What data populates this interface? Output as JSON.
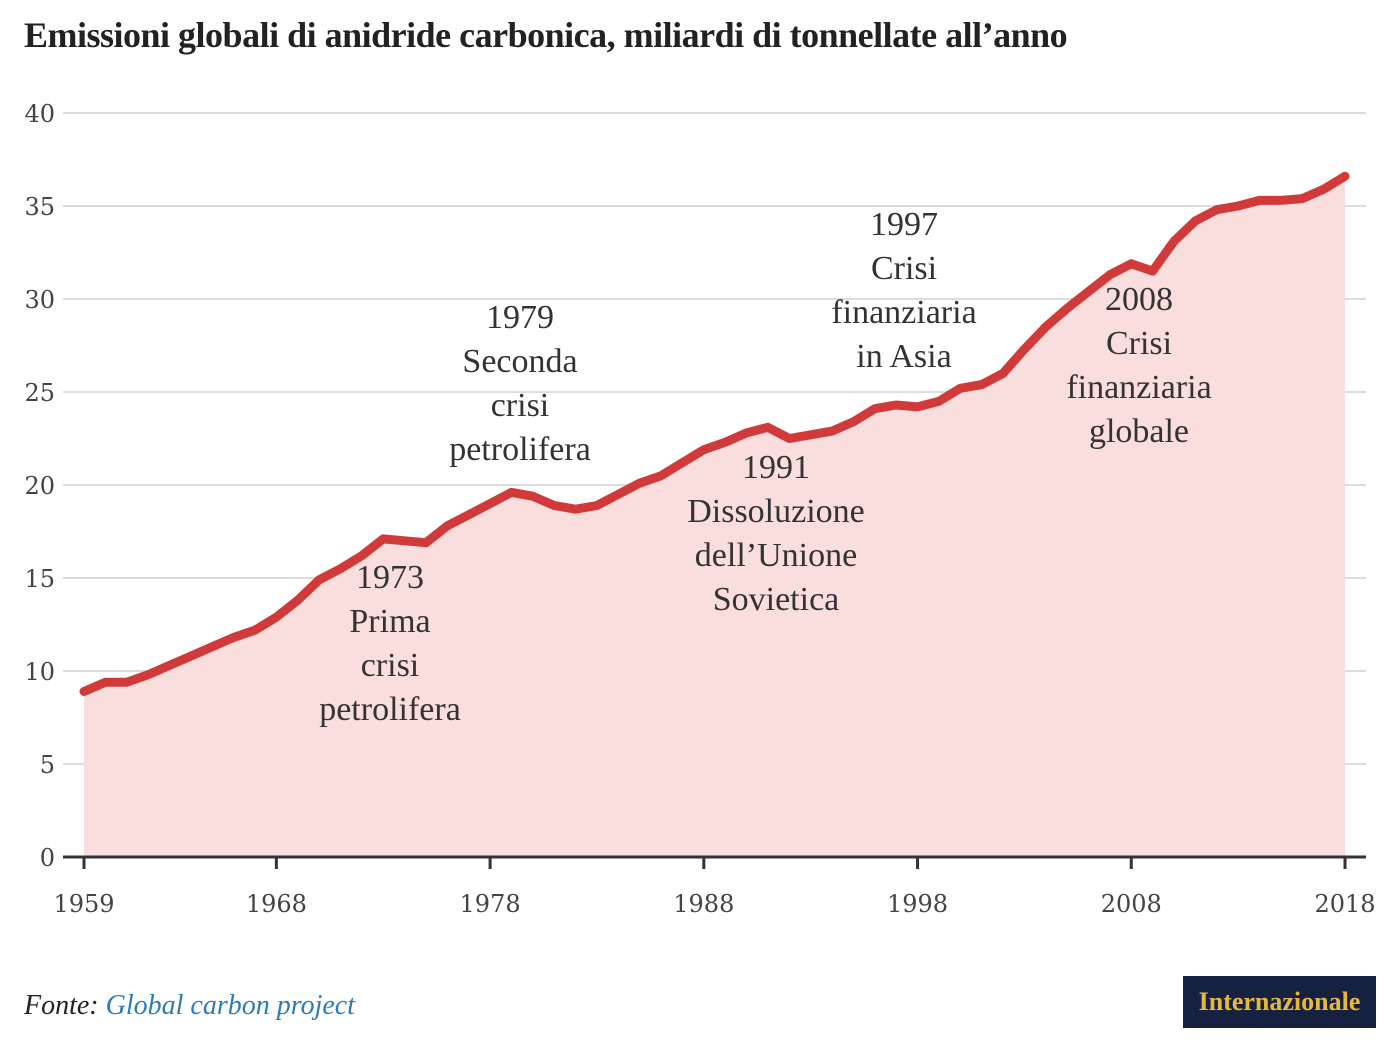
{
  "title": "Emissioni globali di anidride carbonica, miliardi di tonnellate all’anno",
  "source": {
    "label": "Fonte:",
    "name": "Global carbon project"
  },
  "logo": "Internazionale",
  "colors": {
    "line": "#d13a3a",
    "area": "#fadddd",
    "grid": "#dddddd",
    "axis": "#333333",
    "logo_bg": "#15213f",
    "logo_text": "#e7b93a",
    "link": "#2b7bb9"
  },
  "chart_data": {
    "type": "area",
    "title": "Emissioni globali di anidride carbonica, miliardi di tonnellate all’anno",
    "ylim": [
      0,
      40
    ],
    "xlim": [
      1959,
      2018
    ],
    "yticks": [
      0,
      5,
      10,
      15,
      20,
      25,
      30,
      35,
      40
    ],
    "xticks": [
      1959,
      1968,
      1978,
      1988,
      1998,
      2008,
      2018
    ],
    "grid": "horizontal",
    "series": [
      {
        "x": [
          1959,
          1960,
          1961,
          1962,
          1963,
          1964,
          1965,
          1966,
          1967,
          1968,
          1969,
          1970,
          1971,
          1972,
          1973,
          1974,
          1975,
          1976,
          1977,
          1978,
          1979,
          1980,
          1981,
          1982,
          1983,
          1984,
          1985,
          1986,
          1987,
          1988,
          1989,
          1990,
          1991,
          1992,
          1993,
          1994,
          1995,
          1996,
          1997,
          1998,
          1999,
          2000,
          2001,
          2002,
          2003,
          2004,
          2005,
          2006,
          2007,
          2008,
          2009,
          2010,
          2011,
          2012,
          2013,
          2014,
          2015,
          2016,
          2017,
          2018
        ],
        "y": [
          8.9,
          9.4,
          9.4,
          9.8,
          10.3,
          10.8,
          11.3,
          11.8,
          12.2,
          12.9,
          13.8,
          14.9,
          15.5,
          16.2,
          17.1,
          17.0,
          16.9,
          17.8,
          18.4,
          19.0,
          19.6,
          19.4,
          18.9,
          18.7,
          18.9,
          19.5,
          20.1,
          20.5,
          21.2,
          21.9,
          22.3,
          22.8,
          23.1,
          22.5,
          22.7,
          22.9,
          23.4,
          24.1,
          24.3,
          24.2,
          24.5,
          25.2,
          25.4,
          26.0,
          27.3,
          28.5,
          29.5,
          30.4,
          31.3,
          31.9,
          31.5,
          33.1,
          34.2,
          34.8,
          35.0,
          35.3,
          35.3,
          35.4,
          35.9,
          36.6
        ]
      }
    ],
    "annotations": [
      {
        "lines": [
          "1973",
          "Prima",
          "crisi",
          "petrolifera"
        ]
      },
      {
        "lines": [
          "1979",
          "Seconda",
          "crisi",
          "petrolifera"
        ]
      },
      {
        "lines": [
          "1991",
          "Dissoluzione",
          "dell’Unione",
          "Sovietica"
        ]
      },
      {
        "lines": [
          "1997",
          "Crisi",
          "finanziaria",
          "in Asia"
        ]
      },
      {
        "lines": [
          "2008",
          "Crisi",
          "finanziaria",
          "globale"
        ]
      }
    ]
  }
}
